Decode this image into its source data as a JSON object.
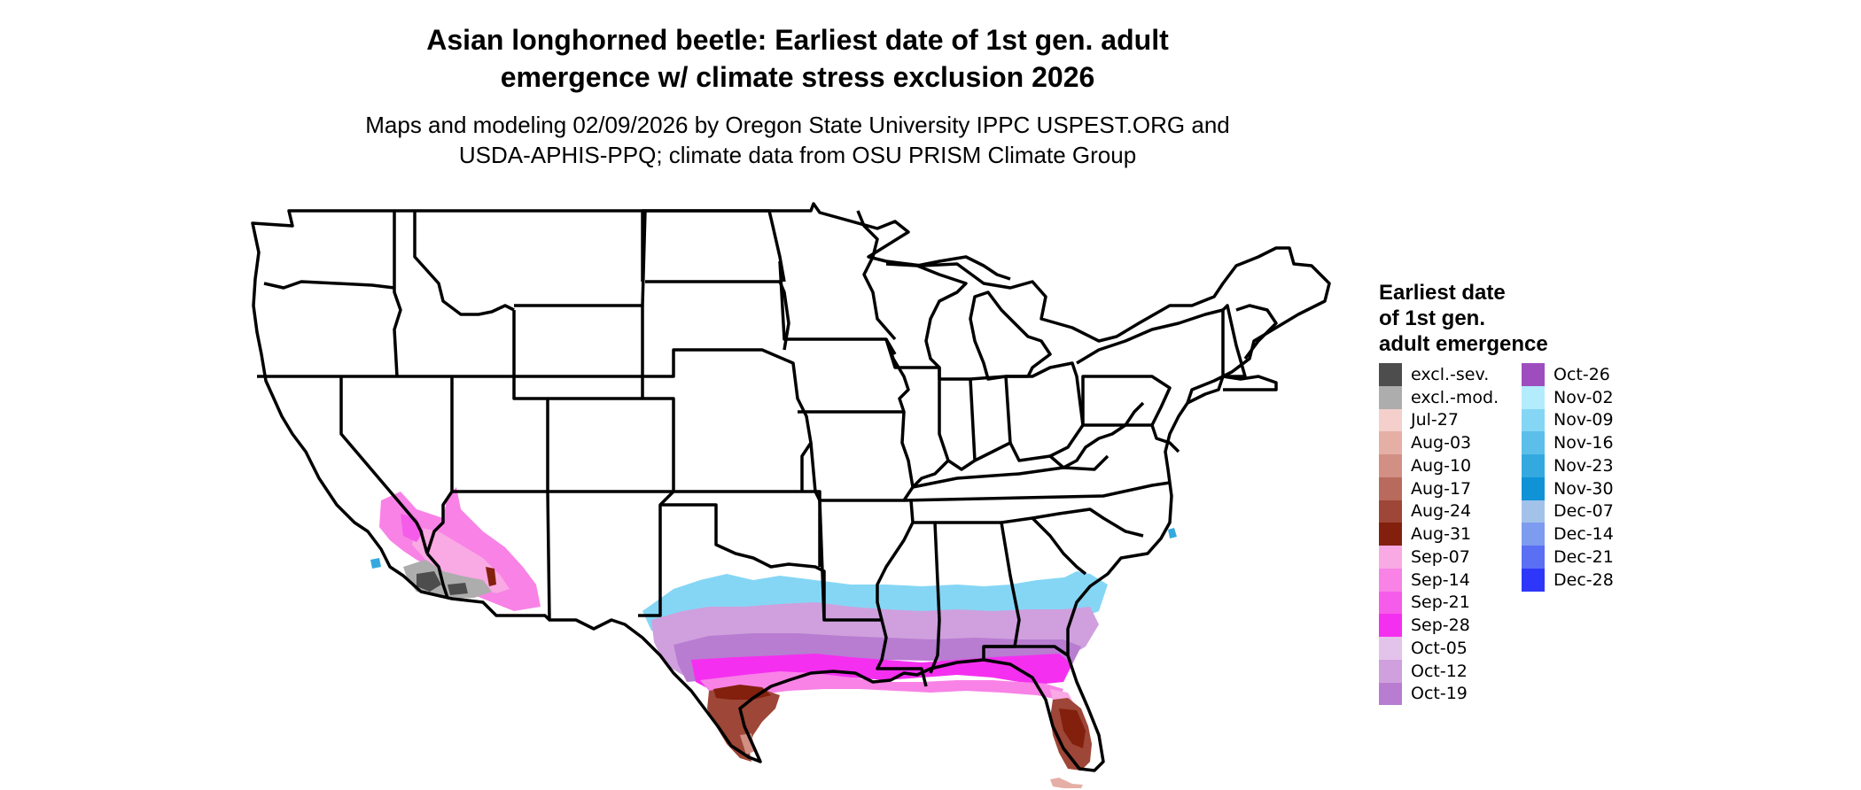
{
  "title_line1": "Asian longhorned beetle: Earliest date of 1st gen. adult",
  "title_line2": "emergence w/ climate stress exclusion 2026",
  "subtitle_line1": "Maps and modeling 02/09/2026 by Oregon State University IPPC USPEST.ORG and",
  "subtitle_line2": "USDA-APHIS-PPQ; climate data from OSU PRISM Climate Group",
  "legend": {
    "title_line1": "Earliest date",
    "title_line2": "of 1st gen.",
    "title_line3": "adult emergence",
    "column1": [
      {
        "label": "excl.-sev.",
        "color": "#4d4d4d"
      },
      {
        "label": "excl.-mod.",
        "color": "#adadad"
      },
      {
        "label": "Jul-27",
        "color": "#f4cfcc"
      },
      {
        "label": "Aug-03",
        "color": "#e5afa6"
      },
      {
        "label": "Aug-10",
        "color": "#d28f84"
      },
      {
        "label": "Aug-17",
        "color": "#b86b5c"
      },
      {
        "label": "Aug-24",
        "color": "#9e4637"
      },
      {
        "label": "Aug-31",
        "color": "#82200d"
      },
      {
        "label": "Sep-07",
        "color": "#f9a9e4"
      },
      {
        "label": "Sep-14",
        "color": "#f882e6"
      },
      {
        "label": "Sep-21",
        "color": "#f55ce9"
      },
      {
        "label": "Sep-28",
        "color": "#f52ff0"
      },
      {
        "label": "Oct-05",
        "color": "#e4c3ea"
      },
      {
        "label": "Oct-12",
        "color": "#cfa0dd"
      },
      {
        "label": "Oct-19",
        "color": "#b87cd1"
      }
    ],
    "column2": [
      {
        "label": "Oct-26",
        "color": "#9e4dbf"
      },
      {
        "label": "Nov-02",
        "color": "#b3ecfd"
      },
      {
        "label": "Nov-09",
        "color": "#85d6f5"
      },
      {
        "label": "Nov-16",
        "color": "#5cbfe9"
      },
      {
        "label": "Nov-23",
        "color": "#34a9e0"
      },
      {
        "label": "Nov-30",
        "color": "#0f93d6"
      },
      {
        "label": "Dec-07",
        "color": "#a3c2ea"
      },
      {
        "label": "Dec-14",
        "color": "#7d9bef"
      },
      {
        "label": "Dec-21",
        "color": "#5a6ff4"
      },
      {
        "label": "Dec-28",
        "color": "#2e37f9"
      }
    ]
  }
}
